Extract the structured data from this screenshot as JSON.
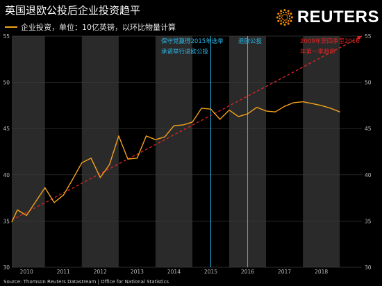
{
  "header": {
    "title": "英国退欧公投后企业投资趋平",
    "legend_label": "企业投资，单位：10亿英镑，以环比物量计算"
  },
  "logo": {
    "name": "reuters-logo",
    "text": "REUTERS"
  },
  "footer": {
    "source": "Source: Thomson Reuters Datastream | Office for National Statistics"
  },
  "annotations": {
    "election_line1": "保守党赢得2015年选举",
    "election_line2": "承诺举行退欧公投",
    "referendum": "退欧公投",
    "trend_line1": "2009年第四季至2016",
    "trend_line2": "年第一季趋势"
  },
  "colors": {
    "series": "#f5a31a",
    "trend": "#e02424",
    "event_lines": "#29b6e6",
    "shade_band": "#2a2a2a",
    "grid": "#3a3a3a"
  },
  "chart_data": {
    "type": "line",
    "title": "英国退欧公投后企业投资趋平",
    "ylim": [
      30,
      55
    ],
    "y_ticks": [
      30,
      35,
      40,
      45,
      50,
      55
    ],
    "x_range": [
      2009.6,
      2019.1
    ],
    "x_tick_labels": [
      "2010",
      "2011",
      "2012",
      "2013",
      "2014",
      "2015",
      "2016",
      "2017",
      "2018"
    ],
    "x_tick_positions": [
      2010.0,
      2011.0,
      2012.0,
      2013.0,
      2014.0,
      2015.0,
      2016.0,
      2017.0,
      2018.0
    ],
    "shaded_years": [
      2010,
      2012,
      2014,
      2016,
      2018
    ],
    "series": [
      {
        "name": "企业投资，单位：10亿英镑，以环比物量计算",
        "x": [
          2009.6,
          2009.75,
          2010.0,
          2010.25,
          2010.5,
          2010.75,
          2011.0,
          2011.25,
          2011.5,
          2011.75,
          2012.0,
          2012.25,
          2012.5,
          2012.75,
          2013.0,
          2013.25,
          2013.5,
          2013.75,
          2014.0,
          2014.25,
          2014.5,
          2014.75,
          2015.0,
          2015.25,
          2015.5,
          2015.75,
          2016.0,
          2016.25,
          2016.5,
          2016.75,
          2017.0,
          2017.25,
          2017.5,
          2017.75,
          2018.0,
          2018.25,
          2018.5
        ],
        "values": [
          34.9,
          36.2,
          35.6,
          37.1,
          38.6,
          37.0,
          37.8,
          39.5,
          41.3,
          41.8,
          39.7,
          41.1,
          44.2,
          41.7,
          41.8,
          44.2,
          43.8,
          44.1,
          45.3,
          45.4,
          45.7,
          47.2,
          47.1,
          46.0,
          47.0,
          46.3,
          46.6,
          47.3,
          46.9,
          46.8,
          47.4,
          47.8,
          47.9,
          47.7,
          47.5,
          47.2,
          46.8
        ]
      }
    ],
    "trend_line": {
      "name": "2009年第四季至2016年第一季趋势",
      "from": [
        2009.6,
        35.1
      ],
      "to": [
        2019.1,
        55.0
      ]
    },
    "event_lines": [
      {
        "label": "保守党赢得2015年选举 承诺举行退欧公投",
        "x": 2015.0
      },
      {
        "label": "退欧公投",
        "x": 2016.0
      }
    ]
  }
}
